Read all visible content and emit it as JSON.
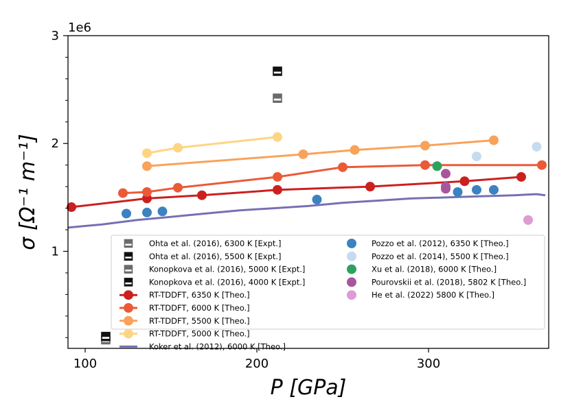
{
  "chart_data": {
    "type": "scatter",
    "title": "",
    "xlabel": "P [GPa]",
    "ylabel": "σ [Ω⁻¹ m⁻¹]",
    "y_scale_label": "1e6",
    "xlim": [
      90,
      370
    ],
    "ylim": [
      0.1,
      3.0
    ],
    "y_scale": 1000000,
    "xticks": [
      100,
      200,
      300
    ],
    "yticks": [
      1,
      2,
      3
    ],
    "y_minor_ticks": [
      0.2,
      0.4,
      0.6,
      0.8,
      1.2,
      1.4,
      1.6,
      1.8,
      2.2,
      2.4,
      2.6,
      2.8
    ],
    "grid": false,
    "legend_position": "lower-right",
    "series": [
      {
        "name": "Ohta et  al. (2016), 6300 K [Expt.]",
        "kind": "marker",
        "marker": "half-square",
        "color": "#6b6b6b",
        "x": [
          212
        ],
        "y": [
          2.42
        ]
      },
      {
        "name": "Ohta et al. (2016), 5500 K [Expt.]",
        "kind": "marker",
        "marker": "half-square",
        "color": "#111111",
        "x": [
          212
        ],
        "y": [
          2.67
        ]
      },
      {
        "name": "Konopkova et al. (2016), 5000 K [Expt.]",
        "kind": "marker",
        "marker": "half-square",
        "color": "#6b6b6b",
        "x": [
          112
        ],
        "y": [
          0.18
        ]
      },
      {
        "name": "Konopkova et al. (2016), 4000  K [Expt.]",
        "kind": "marker",
        "marker": "half-square",
        "color": "#111111",
        "x": [
          112
        ],
        "y": [
          0.21
        ]
      },
      {
        "name": "RT-TDDFT, 6350 K [Theo.]",
        "kind": "line-marker",
        "color": "#cc1f1f",
        "x": [
          92,
          136,
          168,
          212,
          266,
          321,
          354
        ],
        "y": [
          1.41,
          1.49,
          1.52,
          1.57,
          1.6,
          1.65,
          1.69
        ]
      },
      {
        "name": "RT-TDDFT, 6000 K [Theo.]",
        "kind": "line-marker",
        "color": "#ea5a37",
        "x": [
          122,
          136,
          154,
          212,
          250,
          298,
          366
        ],
        "y": [
          1.54,
          1.55,
          1.59,
          1.69,
          1.78,
          1.8,
          1.8
        ]
      },
      {
        "name": "RT-TDDFT, 5500 K [Theo.]",
        "kind": "line-marker",
        "color": "#f9a25a",
        "x": [
          136,
          227,
          257,
          298,
          338
        ],
        "y": [
          1.79,
          1.9,
          1.94,
          1.98,
          2.03
        ]
      },
      {
        "name": "RT-TDDFT, 5000 K [Theo.]",
        "kind": "line-marker",
        "color": "#fdd585",
        "x": [
          136,
          154,
          212
        ],
        "y": [
          1.91,
          1.96,
          2.06
        ]
      },
      {
        "name": "Koker et al. (2012), 6000 K [Theo.]",
        "kind": "line",
        "color": "#7570b3",
        "x": [
          90,
          110,
          130,
          150,
          170,
          190,
          210,
          230,
          250,
          270,
          290,
          310,
          330,
          350,
          363,
          368
        ],
        "y": [
          1.22,
          1.25,
          1.29,
          1.32,
          1.35,
          1.38,
          1.4,
          1.42,
          1.45,
          1.47,
          1.49,
          1.5,
          1.51,
          1.52,
          1.53,
          1.52
        ]
      },
      {
        "name": "Pozzo et al. (2012), 6350 K [Theo.]",
        "kind": "scatter",
        "color": "#3b83c0",
        "x": [
          124,
          136,
          145,
          235,
          317,
          328,
          338
        ],
        "y": [
          1.35,
          1.36,
          1.37,
          1.48,
          1.55,
          1.57,
          1.57
        ]
      },
      {
        "name": "Pozzo et al. (2014), 5500 K [Theo.]",
        "kind": "scatter",
        "color": "#c6dbef",
        "x": [
          328,
          363
        ],
        "y": [
          1.88,
          1.97
        ]
      },
      {
        "name": "Xu et al. (2018), 6000 K [Theo.]",
        "kind": "scatter",
        "color": "#2ca25f",
        "x": [
          305
        ],
        "y": [
          1.79
        ]
      },
      {
        "name": "Pourovskii et al. (2018), 5802 K [Theo.]",
        "kind": "scatter",
        "color": "#a8569c",
        "x": [
          310,
          310,
          310
        ],
        "y": [
          1.72,
          1.6,
          1.58
        ]
      },
      {
        "name": "He et al. (2022) 5800 K [Theo.]",
        "kind": "scatter",
        "color": "#df9bd3",
        "x": [
          358
        ],
        "y": [
          1.29
        ]
      }
    ]
  }
}
